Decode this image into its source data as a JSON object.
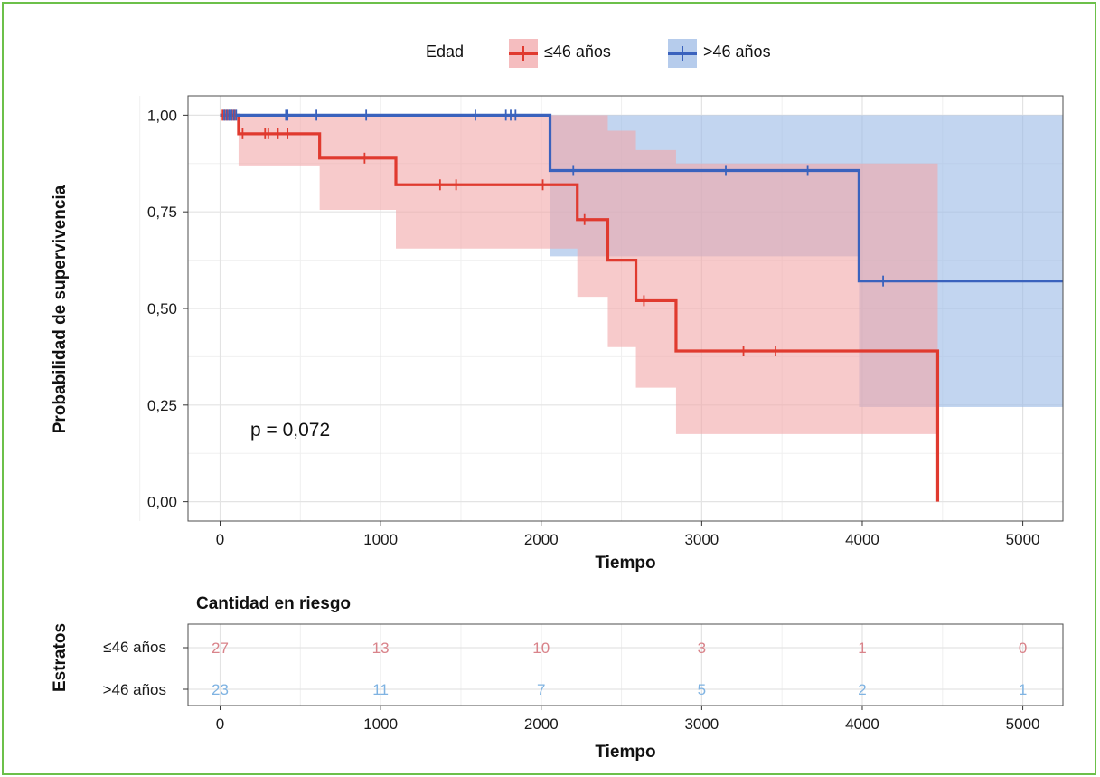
{
  "colors": {
    "group1": "#e03a2f",
    "group1_band": "#f1a7a9",
    "group2": "#3a62bd",
    "group2_band": "#9dbbe6",
    "risk1": "#d9838a",
    "risk2": "#7fb3e2",
    "frame": "#6cc04a"
  },
  "legend": {
    "title": "Edad",
    "items": [
      "≤46 años",
      ">46 años"
    ]
  },
  "annotation": "p = 0,072",
  "chart_data": {
    "type": "line",
    "subtype": "kaplan-meier",
    "xlabel": "Tiempo",
    "ylabel": "Probabilidad de supervivencia",
    "xlim": [
      -200,
      5250
    ],
    "ylim": [
      -0.05,
      1.05
    ],
    "x_ticks": [
      0,
      1000,
      2000,
      3000,
      4000,
      5000
    ],
    "x_tick_labels": [
      "0",
      "1000",
      "2000",
      "3000",
      "4000",
      "5000"
    ],
    "y_ticks": [
      0,
      0.25,
      0.5,
      0.75,
      1
    ],
    "y_tick_labels": [
      "0,00",
      "0,25",
      "0,50",
      "0,75",
      "1,00"
    ],
    "grid": true,
    "legend_position": "top",
    "series": [
      {
        "name": "≤46 años",
        "steps": [
          [
            0,
            1.0
          ],
          [
            115,
            0.952
          ],
          [
            620,
            0.889
          ],
          [
            1095,
            0.82
          ],
          [
            2225,
            0.73
          ],
          [
            2415,
            0.625
          ],
          [
            2590,
            0.52
          ],
          [
            2840,
            0.39
          ],
          [
            4470,
            0.0
          ]
        ],
        "end_x": 4470,
        "ci_lower": [
          [
            0,
            1.0
          ],
          [
            115,
            0.87
          ],
          [
            620,
            0.755
          ],
          [
            1095,
            0.655
          ],
          [
            2225,
            0.53
          ],
          [
            2415,
            0.4
          ],
          [
            2590,
            0.295
          ],
          [
            2840,
            0.175
          ],
          [
            4470,
            0.175
          ]
        ],
        "ci_upper": [
          [
            0,
            1.0
          ],
          [
            115,
            1.0
          ],
          [
            620,
            1.0
          ],
          [
            1095,
            1.0
          ],
          [
            2225,
            1.0
          ],
          [
            2415,
            0.96
          ],
          [
            2590,
            0.91
          ],
          [
            2840,
            0.875
          ],
          [
            4470,
            0.875
          ]
        ],
        "censored": [
          [
            15,
            1.0
          ],
          [
            30,
            1.0
          ],
          [
            45,
            1.0
          ],
          [
            60,
            1.0
          ],
          [
            75,
            1.0
          ],
          [
            90,
            1.0
          ],
          [
            140,
            0.952
          ],
          [
            280,
            0.952
          ],
          [
            300,
            0.952
          ],
          [
            360,
            0.952
          ],
          [
            420,
            0.952
          ],
          [
            900,
            0.889
          ],
          [
            1370,
            0.82
          ],
          [
            1470,
            0.82
          ],
          [
            2010,
            0.82
          ],
          [
            2270,
            0.73
          ],
          [
            2640,
            0.52
          ],
          [
            3260,
            0.39
          ],
          [
            3460,
            0.39
          ]
        ]
      },
      {
        "name": ">46 años",
        "steps": [
          [
            0,
            1.0
          ],
          [
            2055,
            0.857
          ],
          [
            3980,
            0.571
          ]
        ],
        "end_x": 5250,
        "ci_lower": [
          [
            0,
            1.0
          ],
          [
            2055,
            0.635
          ],
          [
            3980,
            0.245
          ]
        ],
        "ci_upper": [
          [
            0,
            1.0
          ],
          [
            2055,
            1.0
          ],
          [
            3980,
            1.0
          ]
        ],
        "censored": [
          [
            25,
            1.0
          ],
          [
            40,
            1.0
          ],
          [
            55,
            1.0
          ],
          [
            70,
            1.0
          ],
          [
            85,
            1.0
          ],
          [
            100,
            1.0
          ],
          [
            410,
            1.0
          ],
          [
            420,
            1.0
          ],
          [
            600,
            1.0
          ],
          [
            910,
            1.0
          ],
          [
            1590,
            1.0
          ],
          [
            1780,
            1.0
          ],
          [
            1810,
            1.0
          ],
          [
            1840,
            1.0
          ],
          [
            2200,
            0.857
          ],
          [
            3150,
            0.857
          ],
          [
            3660,
            0.857
          ],
          [
            4130,
            0.571
          ]
        ]
      }
    ]
  },
  "risk_table": {
    "title": "Cantidad en riesgo",
    "ylabel": "Estratos",
    "xlabel": "Tiempo",
    "times": [
      0,
      1000,
      2000,
      3000,
      4000,
      5000
    ],
    "x_tick_labels": [
      "0",
      "1000",
      "2000",
      "3000",
      "4000",
      "5000"
    ],
    "rows": [
      {
        "label": "≤46 años",
        "values": [
          "27",
          "13",
          "10",
          "3",
          "1",
          "0"
        ]
      },
      {
        "label": ">46 años",
        "values": [
          "23",
          "11",
          "7",
          "5",
          "2",
          "1"
        ]
      }
    ]
  }
}
